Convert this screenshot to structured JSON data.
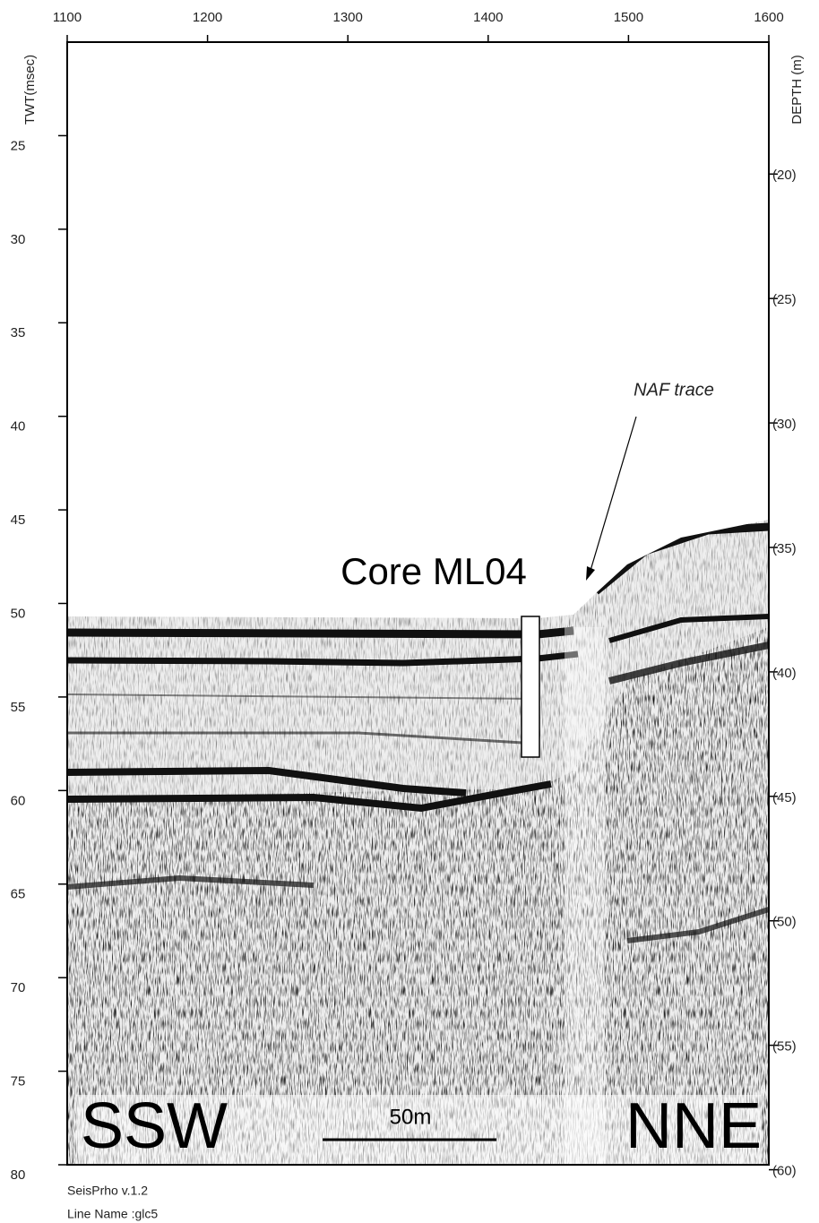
{
  "chart_data": {
    "type": "seismic-profile",
    "ylabel": "TWT(msec)",
    "y2label": "DEPTH (m)",
    "xlim": [
      1100,
      1600
    ],
    "xticks": [
      1100,
      1200,
      1300,
      1400,
      1500,
      1600
    ],
    "ylim": [
      20,
      80
    ],
    "yticks": [
      25,
      30,
      35,
      40,
      45,
      50,
      55,
      60,
      65,
      70,
      75,
      80
    ],
    "y2lim": [
      14.7,
      59.8
    ],
    "y2ticks": [
      {
        "value": 20,
        "label": "(20)"
      },
      {
        "value": 25,
        "label": "(25)"
      },
      {
        "value": 30,
        "label": "(30)"
      },
      {
        "value": 35,
        "label": "(35)"
      },
      {
        "value": 40,
        "label": "(40)"
      },
      {
        "value": 45,
        "label": "(45)"
      },
      {
        "value": 50,
        "label": "(50)"
      },
      {
        "value": 55,
        "label": "(55)"
      },
      {
        "value": 60,
        "label": "(60)"
      }
    ],
    "annotations": {
      "fault": "NAF trace",
      "core": "Core ML04",
      "left_direction": "SSW",
      "right_direction": "NNE",
      "scale_bar": "50m"
    },
    "footer": [
      "SeisPrho v.1.2",
      "Line Name :glc5"
    ]
  }
}
